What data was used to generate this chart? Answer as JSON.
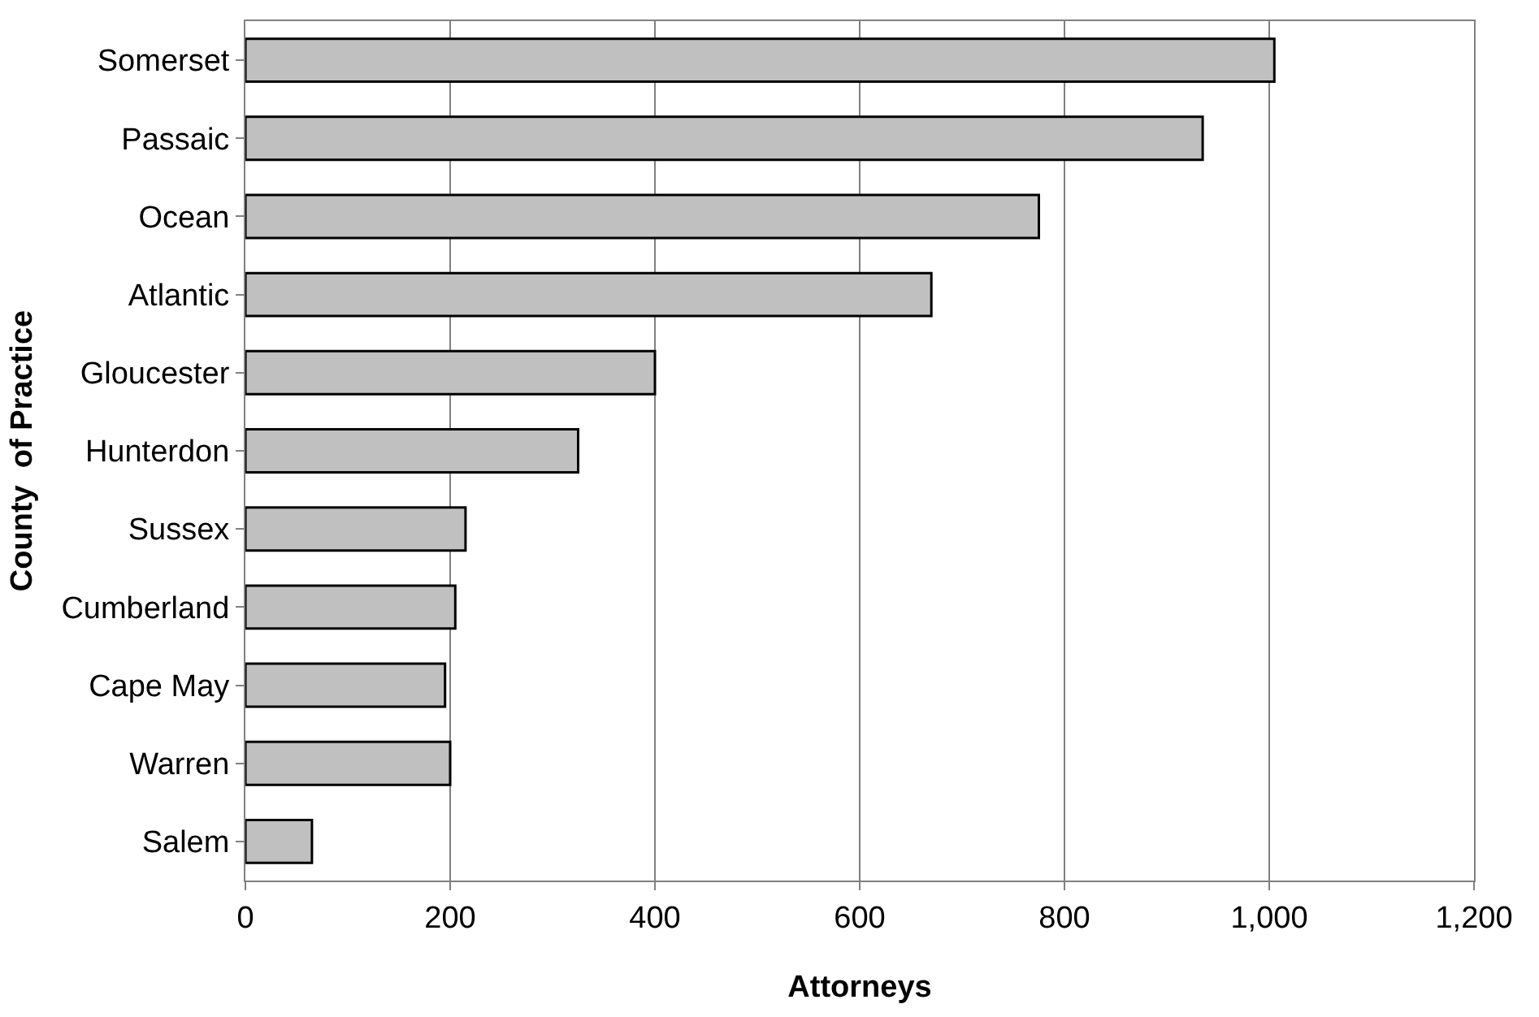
{
  "chart_data": {
    "type": "bar",
    "orientation": "horizontal",
    "xlabel": "Attorneys",
    "ylabel": "County  of Practice",
    "categories": [
      "Somerset",
      "Passaic",
      "Ocean",
      "Atlantic",
      "Gloucester",
      "Hunterdon",
      "Sussex",
      "Cumberland",
      "Cape May",
      "Warren",
      "Salem"
    ],
    "values": [
      1005,
      935,
      775,
      670,
      400,
      325,
      215,
      205,
      195,
      200,
      65
    ],
    "color": "#c0c0c0",
    "xlim": [
      0,
      1200
    ],
    "xticks": [
      0,
      200,
      400,
      600,
      800,
      {
        "value": 1000,
        "label": "1,000"
      },
      {
        "value": 1200,
        "label": "1,200"
      }
    ],
    "grid": "x"
  }
}
